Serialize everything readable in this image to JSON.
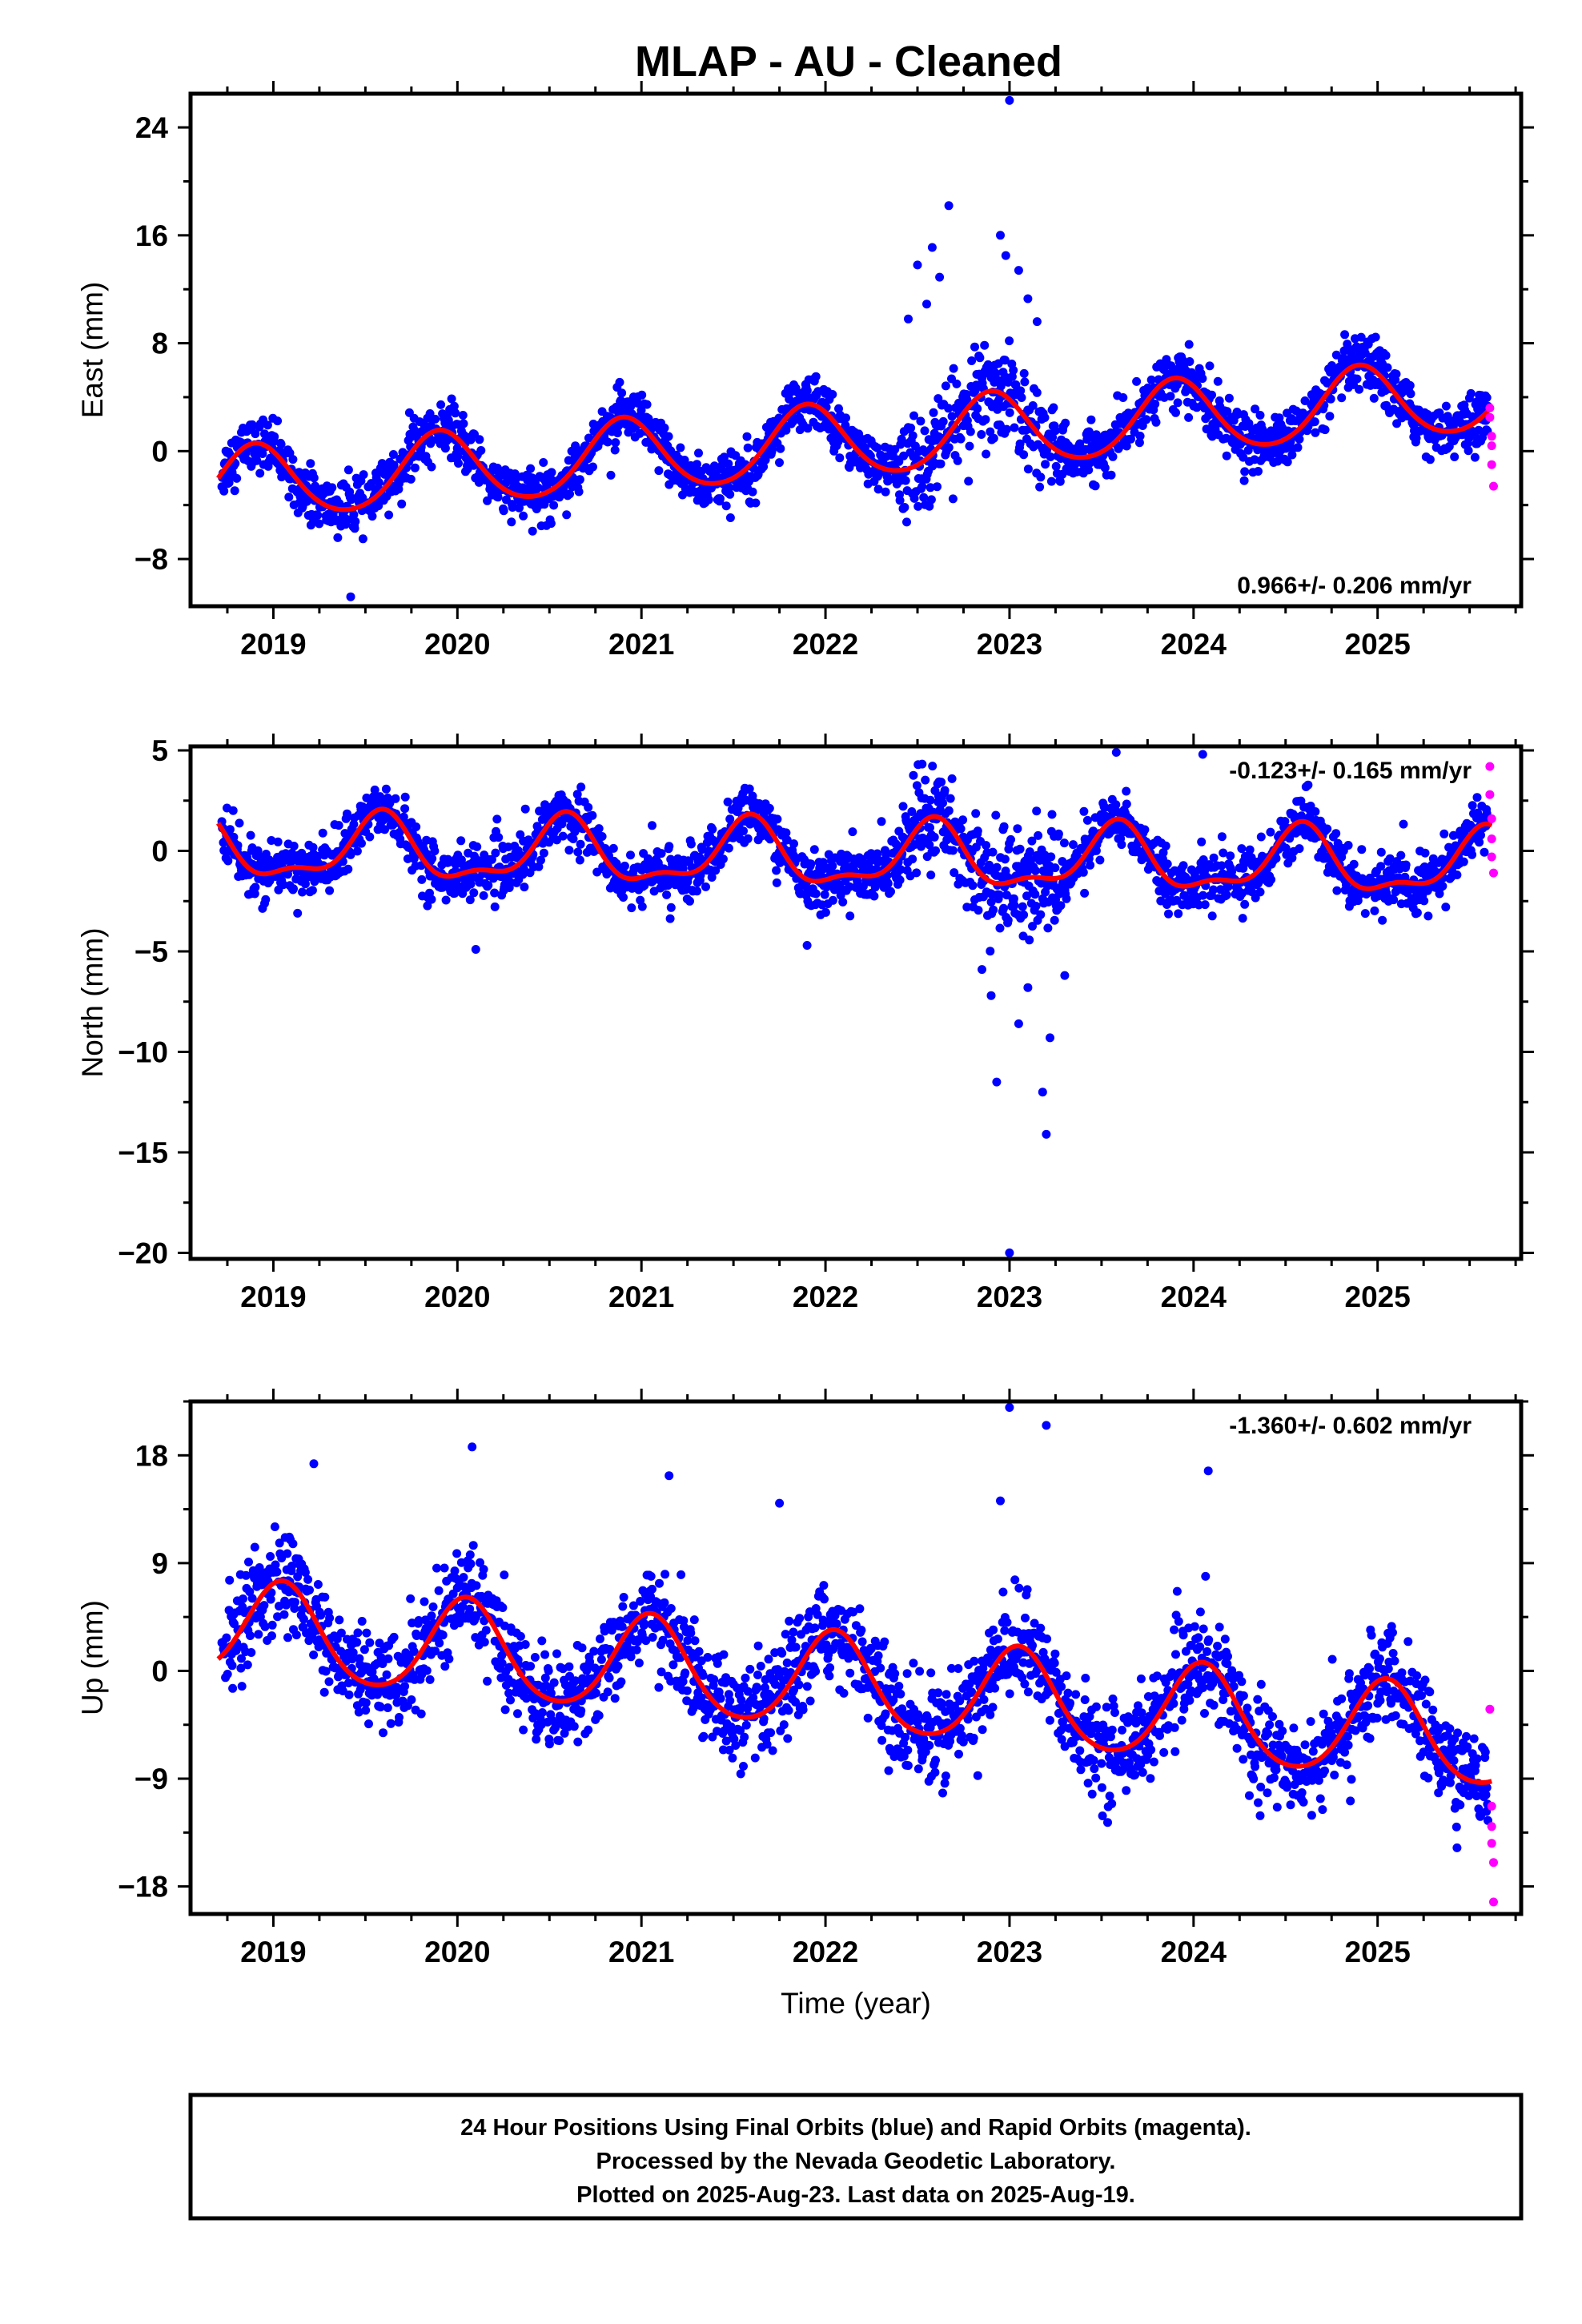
{
  "title": "MLAP  - AU - Cleaned",
  "footer": {
    "line1": "24 Hour Positions Using Final Orbits (blue) and Rapid Orbits (magenta).",
    "line2": "Processed by the Nevada Geodetic Laboratory.",
    "line3": "Plotted on 2025-Aug-23. Last data on 2025-Aug-19."
  },
  "colors": {
    "final": "#0000ff",
    "rapid": "#ff00ff",
    "model": "#ff0000"
  },
  "chart_data": [
    {
      "type": "scatter",
      "panel": "east",
      "ylabel": "East (mm)",
      "xlabel": "",
      "xlim": [
        2018.55,
        2025.78
      ],
      "ylim": [
        -11.5,
        26.5
      ],
      "xticks": [
        "2019",
        "2020",
        "2021",
        "2022",
        "2023",
        "2024",
        "2025"
      ],
      "xtick_values": [
        2019,
        2020,
        2021,
        2022,
        2023,
        2024,
        2025
      ],
      "yticks": [
        "24",
        "16",
        "8",
        "0",
        "-8"
      ],
      "ytick_values": [
        24,
        16,
        8,
        0,
        -8
      ],
      "rate_label": "0.966+/- 0.206 mm/yr",
      "model": {
        "offset": -2.6,
        "trend": 0.966,
        "annual_amp": 2.7,
        "annual_peak": 0.9,
        "semi_amp": 0.3,
        "semi_peak": 0.4,
        "noise": 1.3
      },
      "outliers": [
        [
          2023.0,
          26.0
        ],
        [
          2022.67,
          18.2
        ],
        [
          2022.58,
          15.1
        ],
        [
          2022.5,
          13.8
        ],
        [
          2022.62,
          12.9
        ],
        [
          2022.95,
          16.0
        ],
        [
          2023.05,
          13.4
        ],
        [
          2022.98,
          14.5
        ],
        [
          2023.1,
          11.3
        ],
        [
          2022.45,
          9.8
        ],
        [
          2023.15,
          9.6
        ],
        [
          2022.55,
          10.9
        ],
        [
          2019.42,
          -10.8
        ]
      ],
      "rapid": [
        [
          2025.61,
          3.2
        ],
        [
          2025.61,
          2.5
        ],
        [
          2025.62,
          1.1
        ],
        [
          2025.62,
          0.4
        ],
        [
          2025.62,
          -1.0
        ],
        [
          2025.63,
          -2.6
        ]
      ],
      "series": [
        {
          "name": "Final Orbits (blue)",
          "color": "#0000ff"
        },
        {
          "name": "Rapid Orbits (magenta)",
          "color": "#ff00ff"
        }
      ]
    },
    {
      "type": "scatter",
      "panel": "north",
      "ylabel": "North (mm)",
      "xlabel": "",
      "xlim": [
        2018.55,
        2025.78
      ],
      "ylim": [
        -20.3,
        5.2
      ],
      "xticks": [
        "2019",
        "2020",
        "2021",
        "2022",
        "2023",
        "2024",
        "2025"
      ],
      "xtick_values": [
        2019,
        2020,
        2021,
        2022,
        2023,
        2024,
        2025
      ],
      "yticks": [
        "5",
        "0",
        "-5",
        "-10",
        "-15",
        "-20"
      ],
      "ytick_values": [
        5,
        0,
        -5,
        -10,
        -15,
        -20
      ],
      "rate_label": "-0.123+/- 0.165 mm/yr",
      "model": {
        "offset": 0.1,
        "trend": -0.123,
        "annual_amp": 1.5,
        "annual_peak": 0.58,
        "semi_amp": 0.6,
        "semi_peak": 0.1,
        "noise": 0.9
      },
      "outliers": [
        [
          2023.0,
          -20.0
        ],
        [
          2023.2,
          -14.1
        ],
        [
          2023.18,
          -12.0
        ],
        [
          2022.93,
          -11.5
        ],
        [
          2023.22,
          -9.3
        ],
        [
          2023.05,
          -8.6
        ],
        [
          2022.9,
          -7.2
        ],
        [
          2023.1,
          -6.8
        ],
        [
          2023.3,
          -6.2
        ],
        [
          2022.85,
          -5.9
        ],
        [
          2020.1,
          -4.9
        ],
        [
          2021.9,
          -4.7
        ],
        [
          2024.05,
          4.8
        ],
        [
          2023.58,
          4.9
        ]
      ],
      "rapid": [
        [
          2025.61,
          4.2
        ],
        [
          2025.61,
          2.8
        ],
        [
          2025.62,
          1.6
        ],
        [
          2025.62,
          0.6
        ],
        [
          2025.62,
          -0.3
        ],
        [
          2025.63,
          -1.1
        ]
      ],
      "series": [
        {
          "name": "Final Orbits (blue)",
          "color": "#0000ff"
        },
        {
          "name": "Rapid Orbits (magenta)",
          "color": "#ff00ff"
        }
      ]
    },
    {
      "type": "scatter",
      "panel": "up",
      "ylabel": "Up (mm)",
      "xlabel": "Time (year)",
      "xlim": [
        2018.55,
        2025.78
      ],
      "ylim": [
        -20.3,
        22.5
      ],
      "xticks": [
        "2019",
        "2020",
        "2021",
        "2022",
        "2023",
        "2024",
        "2025"
      ],
      "xtick_values": [
        2019,
        2020,
        2021,
        2022,
        2023,
        2024,
        2025
      ],
      "yticks": [
        "18",
        "9",
        "0",
        "-9",
        "-18"
      ],
      "ytick_values": [
        18,
        9,
        0,
        -9,
        -18
      ],
      "rate_label": "-1.360+/- 0.602 mm/yr",
      "model": {
        "offset": 3.5,
        "trend": -1.36,
        "annual_amp": 4.0,
        "annual_peak": 0.05,
        "semi_amp": 0.5,
        "semi_peak": 0.05,
        "noise": 2.7
      },
      "outliers": [
        [
          2023.0,
          22.0
        ],
        [
          2023.2,
          20.5
        ],
        [
          2020.08,
          18.7
        ],
        [
          2024.08,
          16.7
        ],
        [
          2019.22,
          17.3
        ],
        [
          2021.15,
          16.3
        ],
        [
          2021.75,
          14.0
        ],
        [
          2022.95,
          14.2
        ]
      ],
      "rapid": [
        [
          2025.61,
          -3.2
        ],
        [
          2025.62,
          -11.3
        ],
        [
          2025.62,
          -13.0
        ],
        [
          2025.62,
          -14.4
        ],
        [
          2025.63,
          -16.0
        ],
        [
          2025.63,
          -19.3
        ]
      ],
      "series": [
        {
          "name": "Final Orbits (blue)",
          "color": "#0000ff"
        },
        {
          "name": "Rapid Orbits (magenta)",
          "color": "#ff00ff"
        }
      ]
    }
  ]
}
